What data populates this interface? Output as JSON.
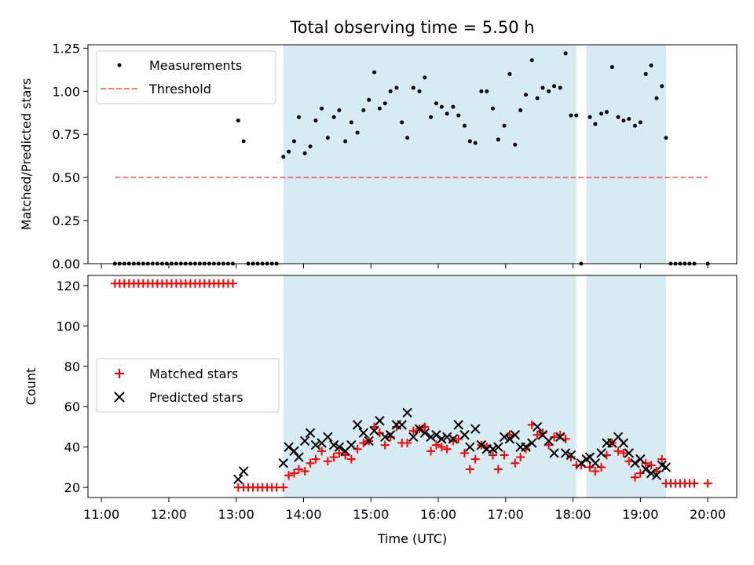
{
  "chart_data": {
    "title": "Total observing time = 5.50 h",
    "xlabel": "Time (UTC)",
    "x_tick_labels": [
      "11:00",
      "12:00",
      "13:00",
      "14:00",
      "15:00",
      "16:00",
      "17:00",
      "18:00",
      "19:00",
      "20:00"
    ],
    "x_ticks": [
      11,
      12,
      13,
      14,
      15,
      16,
      17,
      18,
      19,
      20
    ],
    "xlim": [
      10.8,
      20.43
    ],
    "shaded_intervals": [
      [
        13.7,
        18.05
      ],
      [
        18.2,
        19.38
      ]
    ],
    "shade_color": "#add8e6",
    "top": {
      "type": "scatter",
      "ylabel": "Matched/Predicted stars",
      "ylim": [
        0,
        1.27
      ],
      "y_ticks": [
        0,
        0.25,
        0.5,
        0.75,
        1.0,
        1.25
      ],
      "y_tick_labels": [
        "0.00",
        "0.25",
        "0.50",
        "0.75",
        "1.00",
        "1.25"
      ],
      "legend": [
        "Measurements",
        "Threshold"
      ],
      "threshold": {
        "value": 0.5,
        "x_range": [
          11.2,
          20.0
        ],
        "color": "#ff0000"
      },
      "measurements": [
        [
          11.2,
          0
        ],
        [
          11.27,
          0
        ],
        [
          11.34,
          0
        ],
        [
          11.41,
          0
        ],
        [
          11.48,
          0
        ],
        [
          11.55,
          0
        ],
        [
          11.62,
          0
        ],
        [
          11.69,
          0
        ],
        [
          11.76,
          0
        ],
        [
          11.83,
          0
        ],
        [
          11.9,
          0
        ],
        [
          11.97,
          0
        ],
        [
          12.04,
          0
        ],
        [
          12.11,
          0
        ],
        [
          12.18,
          0
        ],
        [
          12.25,
          0
        ],
        [
          12.32,
          0
        ],
        [
          12.39,
          0
        ],
        [
          12.46,
          0
        ],
        [
          12.53,
          0
        ],
        [
          12.6,
          0
        ],
        [
          12.67,
          0
        ],
        [
          12.74,
          0
        ],
        [
          12.81,
          0
        ],
        [
          12.88,
          0
        ],
        [
          12.95,
          0
        ],
        [
          13.03,
          0.83
        ],
        [
          13.11,
          0.71
        ],
        [
          13.18,
          0
        ],
        [
          13.25,
          0
        ],
        [
          13.32,
          0
        ],
        [
          13.39,
          0
        ],
        [
          13.46,
          0
        ],
        [
          13.53,
          0
        ],
        [
          13.6,
          0
        ],
        [
          13.7,
          0.62
        ],
        [
          13.78,
          0.65
        ],
        [
          13.86,
          0.71
        ],
        [
          13.93,
          0.85
        ],
        [
          14.02,
          0.64
        ],
        [
          14.1,
          0.68
        ],
        [
          14.18,
          0.83
        ],
        [
          14.27,
          0.9
        ],
        [
          14.36,
          0.73
        ],
        [
          14.45,
          0.85
        ],
        [
          14.53,
          0.89
        ],
        [
          14.62,
          0.71
        ],
        [
          14.71,
          0.82
        ],
        [
          14.8,
          0.76
        ],
        [
          14.89,
          0.89
        ],
        [
          14.97,
          0.95
        ],
        [
          15.05,
          1.11
        ],
        [
          15.13,
          0.9
        ],
        [
          15.21,
          0.93
        ],
        [
          15.29,
          1.0
        ],
        [
          15.38,
          1.02
        ],
        [
          15.46,
          0.82
        ],
        [
          15.54,
          0.73
        ],
        [
          15.63,
          1.02
        ],
        [
          15.72,
          1.0
        ],
        [
          15.8,
          1.08
        ],
        [
          15.89,
          0.85
        ],
        [
          15.97,
          0.93
        ],
        [
          16.05,
          0.91
        ],
        [
          16.13,
          0.87
        ],
        [
          16.22,
          0.91
        ],
        [
          16.3,
          0.86
        ],
        [
          16.39,
          0.8
        ],
        [
          16.47,
          0.71
        ],
        [
          16.55,
          0.7
        ],
        [
          16.64,
          1.0
        ],
        [
          16.72,
          1.0
        ],
        [
          16.81,
          0.9
        ],
        [
          16.89,
          0.72
        ],
        [
          16.98,
          0.8
        ],
        [
          17.06,
          1.1
        ],
        [
          17.14,
          0.69
        ],
        [
          17.22,
          0.89
        ],
        [
          17.3,
          0.98
        ],
        [
          17.39,
          1.18
        ],
        [
          17.47,
          0.96
        ],
        [
          17.55,
          1.02
        ],
        [
          17.64,
          1.0
        ],
        [
          17.72,
          1.03
        ],
        [
          17.81,
          1.02
        ],
        [
          17.89,
          1.22
        ],
        [
          17.97,
          0.86
        ],
        [
          18.05,
          0.86
        ],
        [
          18.12,
          0
        ],
        [
          18.25,
          0.85
        ],
        [
          18.33,
          0.81
        ],
        [
          18.42,
          0.87
        ],
        [
          18.5,
          0.88
        ],
        [
          18.58,
          1.14
        ],
        [
          18.67,
          0.85
        ],
        [
          18.75,
          0.83
        ],
        [
          18.83,
          0.84
        ],
        [
          18.92,
          0.8
        ],
        [
          19.0,
          0.82
        ],
        [
          19.08,
          1.1
        ],
        [
          19.16,
          1.15
        ],
        [
          19.24,
          0.96
        ],
        [
          19.32,
          1.03
        ],
        [
          19.38,
          0.73
        ],
        [
          19.45,
          0
        ],
        [
          19.52,
          0
        ],
        [
          19.59,
          0
        ],
        [
          19.66,
          0
        ],
        [
          19.73,
          0
        ],
        [
          19.8,
          0
        ],
        [
          20.0,
          0
        ]
      ]
    },
    "bottom": {
      "type": "scatter",
      "ylabel": "Count",
      "ylim": [
        15,
        125
      ],
      "y_ticks": [
        20,
        40,
        60,
        80,
        100,
        120
      ],
      "y_tick_labels": [
        "20",
        "40",
        "60",
        "80",
        "100",
        "120"
      ],
      "legend": [
        "Matched stars",
        "Predicted stars"
      ],
      "matched_color": "#ff0000",
      "predicted_color": "#000000",
      "matched": [
        [
          11.2,
          121
        ],
        [
          11.27,
          121
        ],
        [
          11.34,
          121
        ],
        [
          11.41,
          121
        ],
        [
          11.48,
          121
        ],
        [
          11.55,
          121
        ],
        [
          11.62,
          121
        ],
        [
          11.69,
          121
        ],
        [
          11.76,
          121
        ],
        [
          11.83,
          121
        ],
        [
          11.9,
          121
        ],
        [
          11.97,
          121
        ],
        [
          12.04,
          121
        ],
        [
          12.11,
          121
        ],
        [
          12.18,
          121
        ],
        [
          12.25,
          121
        ],
        [
          12.32,
          121
        ],
        [
          12.39,
          121
        ],
        [
          12.46,
          121
        ],
        [
          12.53,
          121
        ],
        [
          12.6,
          121
        ],
        [
          12.67,
          121
        ],
        [
          12.74,
          121
        ],
        [
          12.81,
          121
        ],
        [
          12.88,
          121
        ],
        [
          12.95,
          121
        ],
        [
          13.03,
          20
        ],
        [
          13.11,
          20
        ],
        [
          13.18,
          20
        ],
        [
          13.25,
          20
        ],
        [
          13.32,
          20
        ],
        [
          13.39,
          20
        ],
        [
          13.46,
          20
        ],
        [
          13.53,
          20
        ],
        [
          13.6,
          20
        ],
        [
          13.7,
          20
        ],
        [
          13.78,
          26
        ],
        [
          13.86,
          27
        ],
        [
          13.93,
          29
        ],
        [
          14.02,
          28
        ],
        [
          14.1,
          32
        ],
        [
          14.18,
          34
        ],
        [
          14.27,
          38
        ],
        [
          14.36,
          33
        ],
        [
          14.45,
          35
        ],
        [
          14.53,
          37
        ],
        [
          14.62,
          36
        ],
        [
          14.71,
          34
        ],
        [
          14.8,
          39
        ],
        [
          14.89,
          42
        ],
        [
          14.97,
          43
        ],
        [
          15.05,
          50
        ],
        [
          15.13,
          47
        ],
        [
          15.21,
          41
        ],
        [
          15.29,
          45
        ],
        [
          15.38,
          50
        ],
        [
          15.46,
          42
        ],
        [
          15.54,
          42
        ],
        [
          15.63,
          48
        ],
        [
          15.72,
          49
        ],
        [
          15.8,
          50
        ],
        [
          15.89,
          38
        ],
        [
          15.97,
          41
        ],
        [
          16.05,
          40
        ],
        [
          16.13,
          39
        ],
        [
          16.22,
          43
        ],
        [
          16.3,
          44
        ],
        [
          16.39,
          37
        ],
        [
          16.47,
          29
        ],
        [
          16.55,
          34
        ],
        [
          16.64,
          41
        ],
        [
          16.72,
          40
        ],
        [
          16.81,
          36
        ],
        [
          16.89,
          29
        ],
        [
          16.98,
          36
        ],
        [
          17.06,
          46
        ],
        [
          17.14,
          32
        ],
        [
          17.22,
          35
        ],
        [
          17.3,
          39
        ],
        [
          17.39,
          51
        ],
        [
          17.47,
          46
        ],
        [
          17.55,
          47
        ],
        [
          17.64,
          41
        ],
        [
          17.72,
          45
        ],
        [
          17.81,
          46
        ],
        [
          17.89,
          44
        ],
        [
          17.97,
          35
        ],
        [
          18.05,
          31
        ],
        [
          18.12,
          31
        ],
        [
          18.25,
          30
        ],
        [
          18.33,
          28
        ],
        [
          18.42,
          30
        ],
        [
          18.5,
          36
        ],
        [
          18.58,
          42
        ],
        [
          18.67,
          38
        ],
        [
          18.75,
          37
        ],
        [
          18.83,
          33
        ],
        [
          18.92,
          25
        ],
        [
          19.0,
          27
        ],
        [
          19.08,
          32
        ],
        [
          19.16,
          31
        ],
        [
          19.24,
          28
        ],
        [
          19.32,
          34
        ],
        [
          19.38,
          22
        ],
        [
          19.45,
          22
        ],
        [
          19.52,
          22
        ],
        [
          19.59,
          22
        ],
        [
          19.66,
          22
        ],
        [
          19.73,
          22
        ],
        [
          19.8,
          22
        ],
        [
          20.0,
          22
        ]
      ],
      "predicted": [
        [
          13.03,
          24
        ],
        [
          13.11,
          28
        ],
        [
          13.7,
          32
        ],
        [
          13.78,
          40
        ],
        [
          13.86,
          38
        ],
        [
          13.93,
          35
        ],
        [
          14.02,
          43
        ],
        [
          14.1,
          47
        ],
        [
          14.18,
          41
        ],
        [
          14.27,
          42
        ],
        [
          14.36,
          45
        ],
        [
          14.45,
          41
        ],
        [
          14.53,
          40
        ],
        [
          14.62,
          38
        ],
        [
          14.71,
          41
        ],
        [
          14.8,
          51
        ],
        [
          14.89,
          47
        ],
        [
          14.97,
          43
        ],
        [
          15.05,
          48
        ],
        [
          15.13,
          53
        ],
        [
          15.21,
          45
        ],
        [
          15.29,
          46
        ],
        [
          15.38,
          51
        ],
        [
          15.46,
          51
        ],
        [
          15.54,
          57
        ],
        [
          15.63,
          45
        ],
        [
          15.72,
          49
        ],
        [
          15.8,
          47
        ],
        [
          15.89,
          45
        ],
        [
          15.97,
          46
        ],
        [
          16.05,
          44
        ],
        [
          16.13,
          45
        ],
        [
          16.22,
          44
        ],
        [
          16.3,
          51
        ],
        [
          16.39,
          46
        ],
        [
          16.47,
          40
        ],
        [
          16.55,
          49
        ],
        [
          16.64,
          41
        ],
        [
          16.72,
          39
        ],
        [
          16.81,
          39
        ],
        [
          16.89,
          40
        ],
        [
          16.98,
          45
        ],
        [
          17.06,
          44
        ],
        [
          17.14,
          46
        ],
        [
          17.22,
          40
        ],
        [
          17.3,
          40
        ],
        [
          17.39,
          42
        ],
        [
          17.47,
          50
        ],
        [
          17.55,
          46
        ],
        [
          17.64,
          43
        ],
        [
          17.72,
          37
        ],
        [
          17.81,
          45
        ],
        [
          17.89,
          37
        ],
        [
          17.97,
          36
        ],
        [
          18.12,
          32
        ],
        [
          18.2,
          34
        ],
        [
          18.25,
          35
        ],
        [
          18.33,
          32
        ],
        [
          18.42,
          37
        ],
        [
          18.5,
          42
        ],
        [
          18.58,
          42
        ],
        [
          18.67,
          45
        ],
        [
          18.75,
          42
        ],
        [
          18.83,
          37
        ],
        [
          18.92,
          32
        ],
        [
          19.0,
          34
        ],
        [
          19.08,
          29
        ],
        [
          19.16,
          27
        ],
        [
          19.24,
          26
        ],
        [
          19.32,
          31
        ],
        [
          19.38,
          30
        ]
      ]
    }
  }
}
